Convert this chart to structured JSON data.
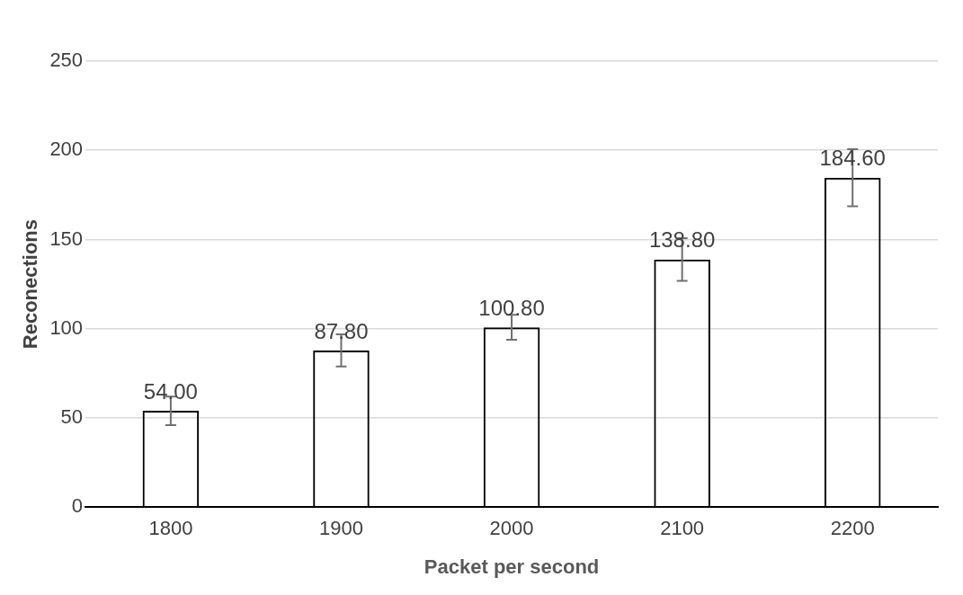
{
  "chart_data": {
    "type": "bar",
    "xlabel": "Packet per second",
    "ylabel": "Reconections",
    "categories": [
      "1800",
      "1900",
      "2000",
      "2100",
      "2200"
    ],
    "values": [
      54.0,
      87.8,
      100.8,
      138.8,
      184.6
    ],
    "value_labels": [
      "54.00",
      "87.80",
      "100.80",
      "138.80",
      "184.60"
    ],
    "errors": [
      8,
      9,
      7,
      12,
      16
    ],
    "color": "#000000",
    "ylim": [
      0,
      250
    ],
    "yticks": [
      0,
      50,
      100,
      150,
      200,
      250
    ],
    "grid": "y",
    "legend": false
  }
}
